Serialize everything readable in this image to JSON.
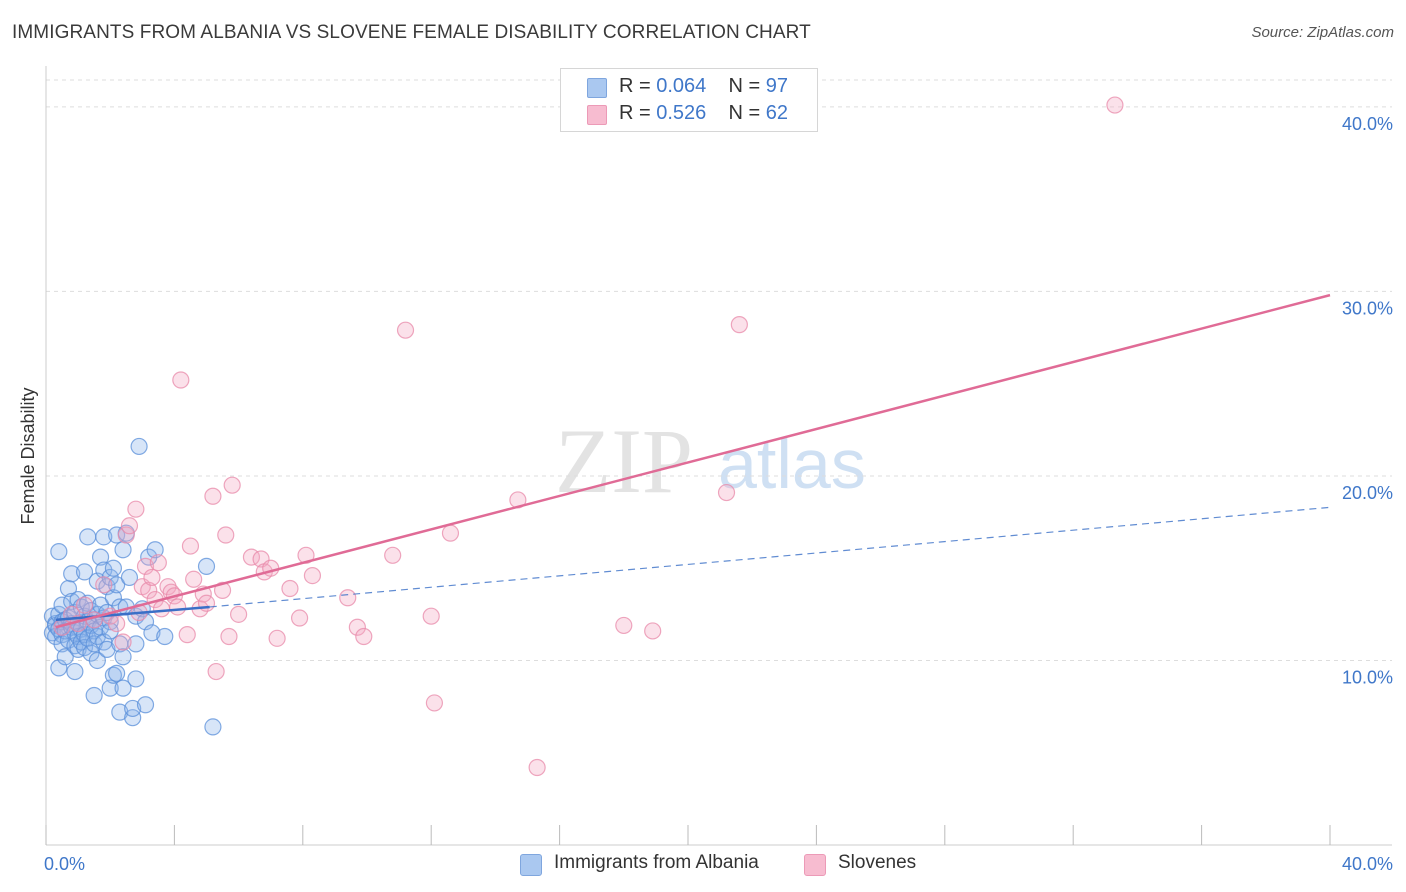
{
  "title": "IMMIGRANTS FROM ALBANIA VS SLOVENE FEMALE DISABILITY CORRELATION CHART",
  "source": "Source: ZipAtlas.com",
  "watermark": {
    "zip": "ZIP",
    "atlas": "atlas"
  },
  "legend": {
    "r_label": "R =",
    "n_label": "N =",
    "rows": [
      {
        "name": "Immigrants from Albania",
        "r": "0.064",
        "n": "97",
        "color": "#aac8f0"
      },
      {
        "name": "Slovenes",
        "r": "0.526",
        "n": "62",
        "color": "#f7bcd0"
      }
    ]
  },
  "colors": {
    "blue_fill": "#8db4ea",
    "blue_stroke": "#5a8fd9",
    "blue_line": "#3a6fc7",
    "pink_fill": "#f4a9c2",
    "pink_stroke": "#e889aa",
    "pink_line": "#e06b96",
    "axis_text": "#3f77c9",
    "grid": "#dddddd"
  },
  "chart_data": {
    "type": "scatter",
    "title": "IMMIGRANTS FROM ALBANIA VS SLOVENE FEMALE DISABILITY CORRELATION CHART",
    "xlabel": "",
    "ylabel": "Female Disability",
    "xlim": [
      0,
      40
    ],
    "ylim": [
      0,
      42
    ],
    "x_tick_labels": [
      "0.0%",
      "40.0%"
    ],
    "y_ticks": [
      10,
      20,
      30,
      40
    ],
    "y_tick_labels": [
      "10.0%",
      "20.0%",
      "30.0%",
      "40.0%"
    ],
    "grid": true,
    "series": [
      {
        "name": "Immigrants from Albania",
        "r": 0.064,
        "n": 97,
        "trend": {
          "solid": [
            [
              0.3,
              12.2
            ],
            [
              5.1,
              12.9
            ]
          ],
          "dashed": [
            [
              5.1,
              12.9
            ],
            [
              40,
              18.3
            ]
          ]
        },
        "points": [
          [
            0.2,
            12.4
          ],
          [
            0.2,
            11.5
          ],
          [
            0.3,
            12.0
          ],
          [
            0.3,
            11.9
          ],
          [
            0.3,
            11.3
          ],
          [
            0.4,
            12.5
          ],
          [
            0.4,
            11.7
          ],
          [
            0.4,
            15.9
          ],
          [
            0.4,
            9.6
          ],
          [
            0.5,
            12.1
          ],
          [
            0.5,
            11.4
          ],
          [
            0.5,
            10.9
          ],
          [
            0.5,
            13.0
          ],
          [
            0.6,
            12.2
          ],
          [
            0.6,
            11.6
          ],
          [
            0.6,
            10.2
          ],
          [
            0.7,
            13.9
          ],
          [
            0.7,
            12.3
          ],
          [
            0.7,
            11.1
          ],
          [
            0.8,
            14.7
          ],
          [
            0.8,
            13.2
          ],
          [
            0.8,
            12.0
          ],
          [
            0.8,
            11.8
          ],
          [
            0.9,
            12.6
          ],
          [
            0.9,
            11.5
          ],
          [
            0.9,
            10.8
          ],
          [
            0.9,
            9.4
          ],
          [
            1.0,
            13.3
          ],
          [
            1.0,
            12.0
          ],
          [
            1.0,
            11.3
          ],
          [
            1.0,
            10.6
          ],
          [
            1.1,
            12.9
          ],
          [
            1.1,
            11.7
          ],
          [
            1.1,
            11.0
          ],
          [
            1.2,
            14.8
          ],
          [
            1.2,
            12.4
          ],
          [
            1.2,
            11.4
          ],
          [
            1.2,
            10.7
          ],
          [
            1.3,
            16.7
          ],
          [
            1.3,
            13.1
          ],
          [
            1.3,
            12.1
          ],
          [
            1.3,
            11.2
          ],
          [
            1.4,
            12.7
          ],
          [
            1.4,
            11.9
          ],
          [
            1.4,
            10.4
          ],
          [
            1.5,
            8.1
          ],
          [
            1.5,
            12.2
          ],
          [
            1.5,
            11.6
          ],
          [
            1.5,
            10.9
          ],
          [
            1.6,
            14.3
          ],
          [
            1.6,
            12.5
          ],
          [
            1.6,
            11.3
          ],
          [
            1.6,
            10.0
          ],
          [
            1.7,
            15.6
          ],
          [
            1.7,
            13.0
          ],
          [
            1.7,
            11.8
          ],
          [
            1.8,
            16.7
          ],
          [
            1.8,
            14.9
          ],
          [
            1.8,
            12.3
          ],
          [
            1.8,
            11.0
          ],
          [
            1.9,
            14.0
          ],
          [
            1.9,
            12.6
          ],
          [
            1.9,
            10.6
          ],
          [
            2.0,
            14.5
          ],
          [
            2.0,
            12.1
          ],
          [
            2.0,
            11.6
          ],
          [
            2.0,
            8.5
          ],
          [
            2.1,
            15.0
          ],
          [
            2.1,
            13.4
          ],
          [
            2.1,
            9.2
          ],
          [
            2.2,
            16.8
          ],
          [
            2.2,
            14.1
          ],
          [
            2.2,
            9.3
          ],
          [
            2.3,
            12.9
          ],
          [
            2.3,
            10.9
          ],
          [
            2.3,
            7.2
          ],
          [
            2.4,
            16.0
          ],
          [
            2.4,
            10.2
          ],
          [
            2.4,
            8.5
          ],
          [
            2.5,
            16.9
          ],
          [
            2.5,
            12.9
          ],
          [
            2.6,
            14.5
          ],
          [
            2.7,
            6.9
          ],
          [
            2.7,
            7.4
          ],
          [
            2.8,
            12.4
          ],
          [
            2.8,
            10.9
          ],
          [
            2.8,
            9.0
          ],
          [
            2.9,
            21.6
          ],
          [
            3.0,
            12.8
          ],
          [
            3.1,
            12.1
          ],
          [
            3.1,
            7.6
          ],
          [
            3.2,
            15.6
          ],
          [
            3.3,
            11.5
          ],
          [
            3.4,
            16.0
          ],
          [
            3.7,
            11.3
          ],
          [
            5.0,
            15.1
          ],
          [
            5.2,
            6.4
          ]
        ]
      },
      {
        "name": "Slovenes",
        "r": 0.526,
        "n": 62,
        "trend": [
          [
            0.3,
            11.8
          ],
          [
            40,
            29.8
          ]
        ],
        "points": [
          [
            0.5,
            11.8
          ],
          [
            0.8,
            12.5
          ],
          [
            1.0,
            12.0
          ],
          [
            1.2,
            13.0
          ],
          [
            1.5,
            12.2
          ],
          [
            1.8,
            14.1
          ],
          [
            2.0,
            12.4
          ],
          [
            2.2,
            12.0
          ],
          [
            2.4,
            11.0
          ],
          [
            2.5,
            16.8
          ],
          [
            2.6,
            17.3
          ],
          [
            2.8,
            18.2
          ],
          [
            2.9,
            12.6
          ],
          [
            3.0,
            14.0
          ],
          [
            3.1,
            15.1
          ],
          [
            3.2,
            13.8
          ],
          [
            3.3,
            14.5
          ],
          [
            3.4,
            13.3
          ],
          [
            3.5,
            15.3
          ],
          [
            3.6,
            12.8
          ],
          [
            3.8,
            14.0
          ],
          [
            3.9,
            13.7
          ],
          [
            4.0,
            13.5
          ],
          [
            4.1,
            12.9
          ],
          [
            4.2,
            25.2
          ],
          [
            4.4,
            11.4
          ],
          [
            4.5,
            16.2
          ],
          [
            4.6,
            14.4
          ],
          [
            4.8,
            12.8
          ],
          [
            4.9,
            13.6
          ],
          [
            5.0,
            13.1
          ],
          [
            5.2,
            18.9
          ],
          [
            5.3,
            9.4
          ],
          [
            5.5,
            13.8
          ],
          [
            5.6,
            16.8
          ],
          [
            5.7,
            11.3
          ],
          [
            5.8,
            19.5
          ],
          [
            6.0,
            12.5
          ],
          [
            6.4,
            15.6
          ],
          [
            6.7,
            15.5
          ],
          [
            6.8,
            14.8
          ],
          [
            7.0,
            15.0
          ],
          [
            7.2,
            11.2
          ],
          [
            7.6,
            13.9
          ],
          [
            7.9,
            12.3
          ],
          [
            8.1,
            15.7
          ],
          [
            8.3,
            14.6
          ],
          [
            9.4,
            13.4
          ],
          [
            9.7,
            11.8
          ],
          [
            9.9,
            11.3
          ],
          [
            10.8,
            15.7
          ],
          [
            11.2,
            27.9
          ],
          [
            12.0,
            12.4
          ],
          [
            12.1,
            7.7
          ],
          [
            12.6,
            16.9
          ],
          [
            14.7,
            18.7
          ],
          [
            15.3,
            4.2
          ],
          [
            18.0,
            11.9
          ],
          [
            21.6,
            28.2
          ],
          [
            21.2,
            19.1
          ],
          [
            33.3,
            40.1
          ],
          [
            18.9,
            11.6
          ]
        ]
      }
    ]
  }
}
